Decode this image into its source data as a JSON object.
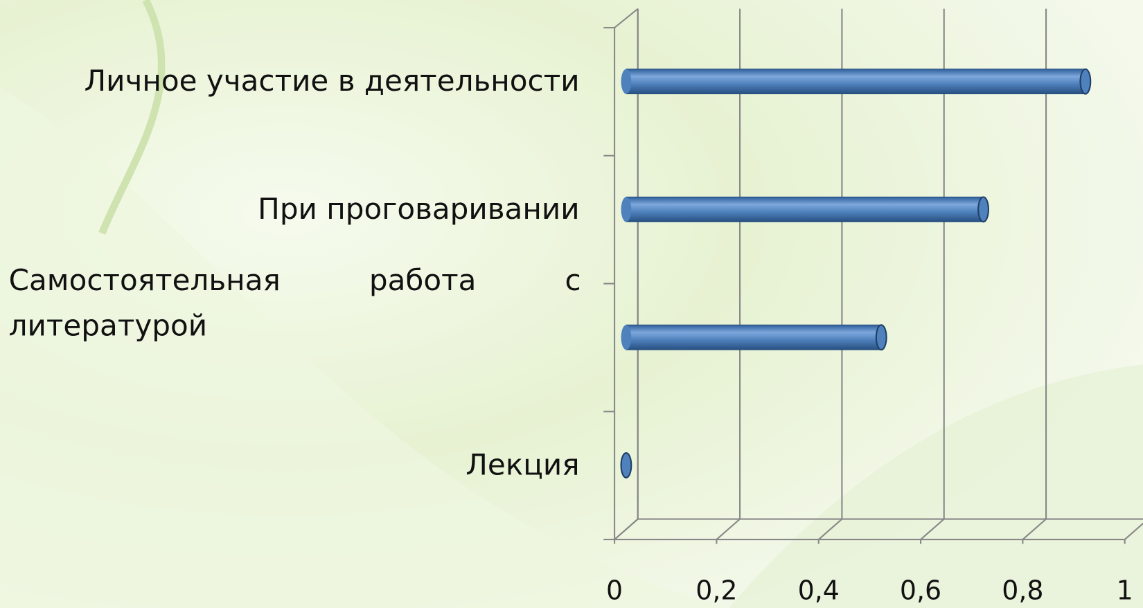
{
  "chart_data": {
    "type": "bar",
    "orientation": "horizontal",
    "categories": [
      "Лекция",
      "Самостоятельная работа с литературой",
      "При проговаривании",
      "Личное участие в деятельности"
    ],
    "values": [
      0,
      0.5,
      0.7,
      0.9
    ],
    "color": "#4f81bd",
    "xlim": [
      0,
      1
    ],
    "xticks": [
      0,
      {
        "value": 0.2,
        "label": "0,2"
      },
      {
        "value": 0.4,
        "label": "0,4"
      },
      {
        "value": 0.6,
        "label": "0,6"
      },
      {
        "value": 0.8,
        "label": "0,8"
      },
      1
    ],
    "grid": true
  }
}
